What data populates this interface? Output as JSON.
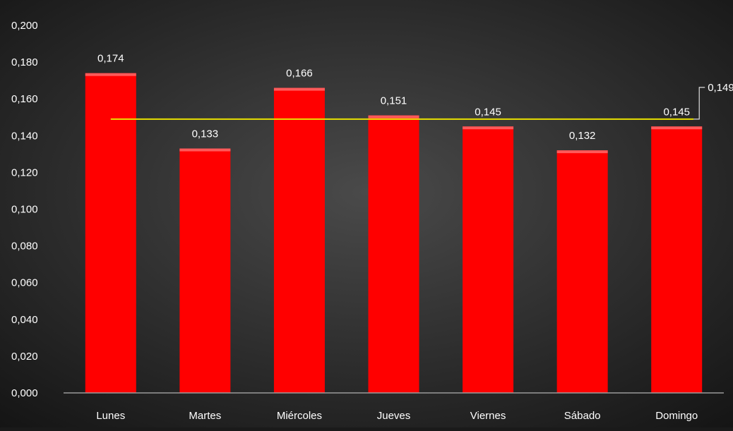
{
  "chart_data": {
    "type": "bar",
    "categories": [
      "Lunes",
      "Martes",
      "Miércoles",
      "Jueves",
      "Viernes",
      "Sábado",
      "Domingo"
    ],
    "values": [
      0.174,
      0.133,
      0.166,
      0.151,
      0.145,
      0.132,
      0.145
    ],
    "value_labels": [
      "0,174",
      "0,133",
      "0,166",
      "0,151",
      "0,145",
      "0,132",
      "0,145"
    ],
    "ylim": [
      0,
      0.2
    ],
    "yticks": [
      0,
      0.02,
      0.04,
      0.06,
      0.08,
      0.1,
      0.12,
      0.14,
      0.16,
      0.18,
      0.2
    ],
    "ytick_labels": [
      "0,000",
      "0,020",
      "0,040",
      "0,060",
      "0,080",
      "0,100",
      "0,120",
      "0,140",
      "0,160",
      "0,180",
      "0,200"
    ],
    "reference_line": {
      "value": 0.149,
      "label": "0,149",
      "color": "#e8e000"
    },
    "grid": false,
    "colors": {
      "bar": "#ff0000",
      "bar_top": "#ff5a5a",
      "text": "#ffffff",
      "axis": "#9a9a9a",
      "background_center": "#4a4a4a",
      "background_edge": "#141414"
    }
  }
}
